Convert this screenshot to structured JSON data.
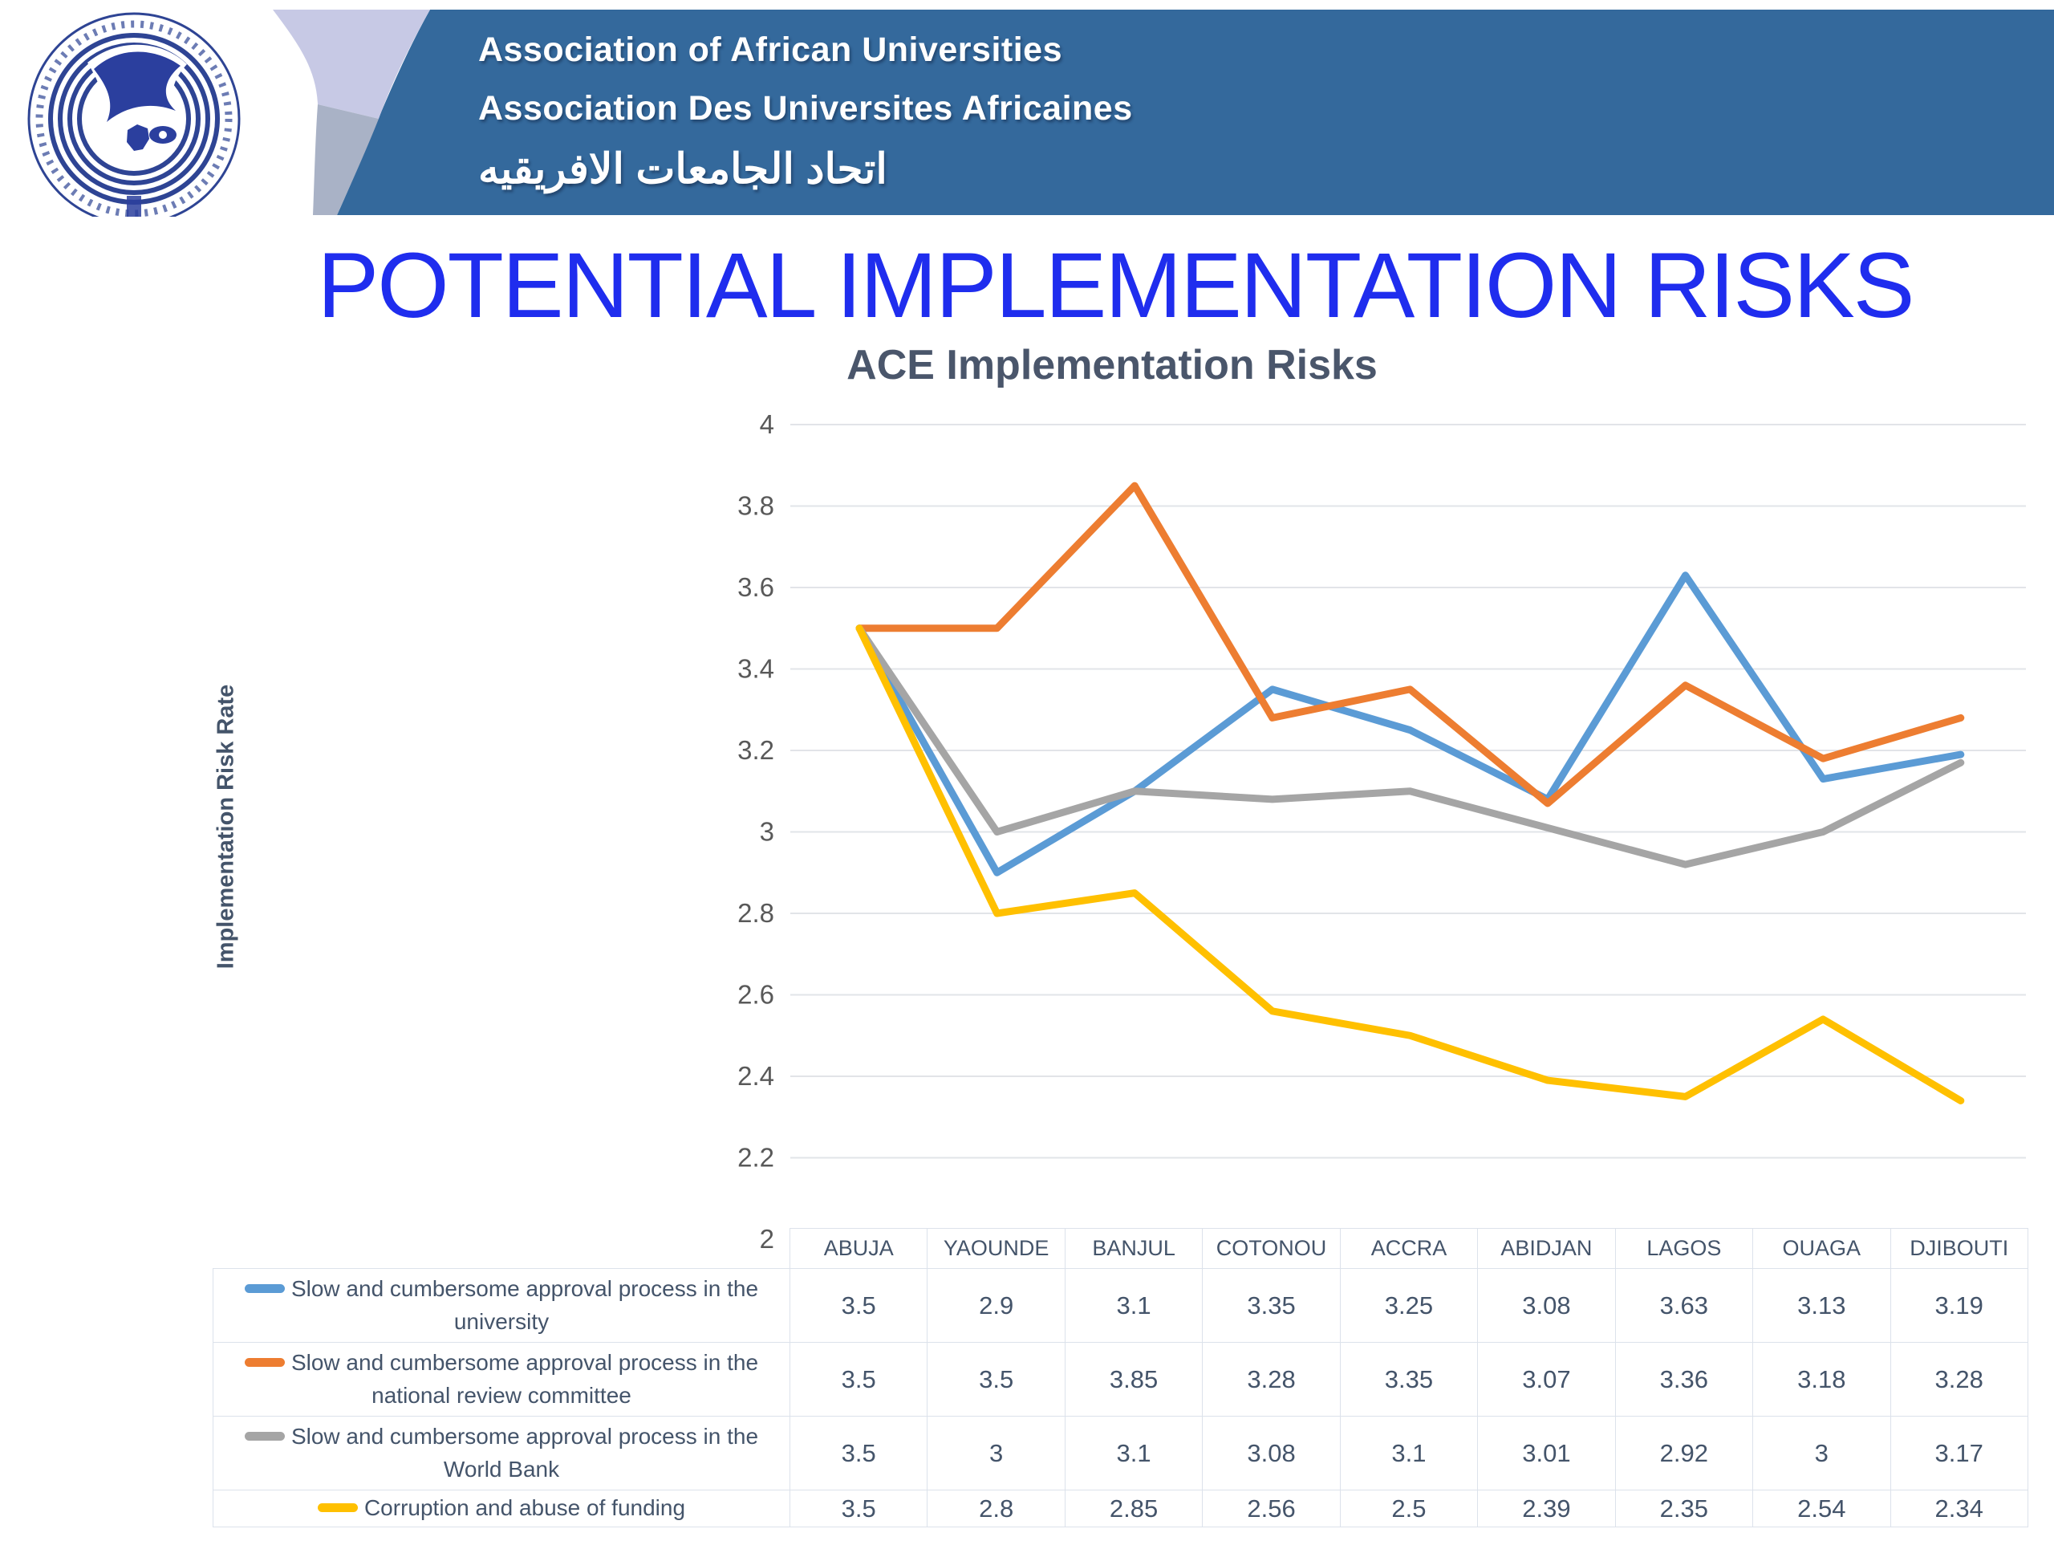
{
  "header": {
    "org_name_en": "Association of African Universities",
    "org_name_fr": "Association Des Universites Africaines",
    "org_name_ar": "اتحاد الجامعات الافريقيه",
    "banner_color": "#34699C"
  },
  "page": {
    "title": "POTENTIAL IMPLEMENTATION RISKS",
    "title_color": "#1F2DEE"
  },
  "chart_data": {
    "type": "line",
    "title": "ACE Implementation Risks",
    "ylabel": "Implementation Risk Rate",
    "xlabel": "",
    "ylim": [
      2,
      4
    ],
    "ytick_step": 0.2,
    "grid": true,
    "legend_position": "left-of-data-table-below-chart",
    "categories": [
      "ABUJA",
      "YAOUNDE",
      "BANJUL",
      "COTONOU",
      "ACCRA",
      "ABIDJAN",
      "LAGOS",
      "OUAGA",
      "DJIBOUTI"
    ],
    "series": [
      {
        "name": "Slow and cumbersome approval process in the\nuniversity",
        "color": "#5B9BD5",
        "values": [
          3.5,
          2.9,
          3.1,
          3.35,
          3.25,
          3.08,
          3.63,
          3.13,
          3.19
        ]
      },
      {
        "name": "Slow and cumbersome approval process in the\nnational review committee",
        "color": "#ED7D31",
        "values": [
          3.5,
          3.5,
          3.85,
          3.28,
          3.35,
          3.07,
          3.36,
          3.18,
          3.28
        ]
      },
      {
        "name": "Slow and cumbersome approval process in the\nWorld Bank",
        "color": "#A5A5A5",
        "values": [
          3.5,
          3,
          3.1,
          3.08,
          3.1,
          3.01,
          2.92,
          3,
          3.17
        ]
      },
      {
        "name": "Corruption and abuse of funding",
        "color": "#FFC000",
        "values": [
          3.5,
          2.8,
          2.85,
          2.56,
          2.5,
          2.39,
          2.35,
          2.54,
          2.34
        ]
      }
    ]
  },
  "colors": {
    "banner_blue": "#34699C",
    "title_blue": "#1F2DEE",
    "subtitle_gray": "#4A566B",
    "axis_text": "#595959",
    "table_text": "#44546A",
    "gridline": "#E2E4E8",
    "table_border": "#DCE2EB"
  }
}
